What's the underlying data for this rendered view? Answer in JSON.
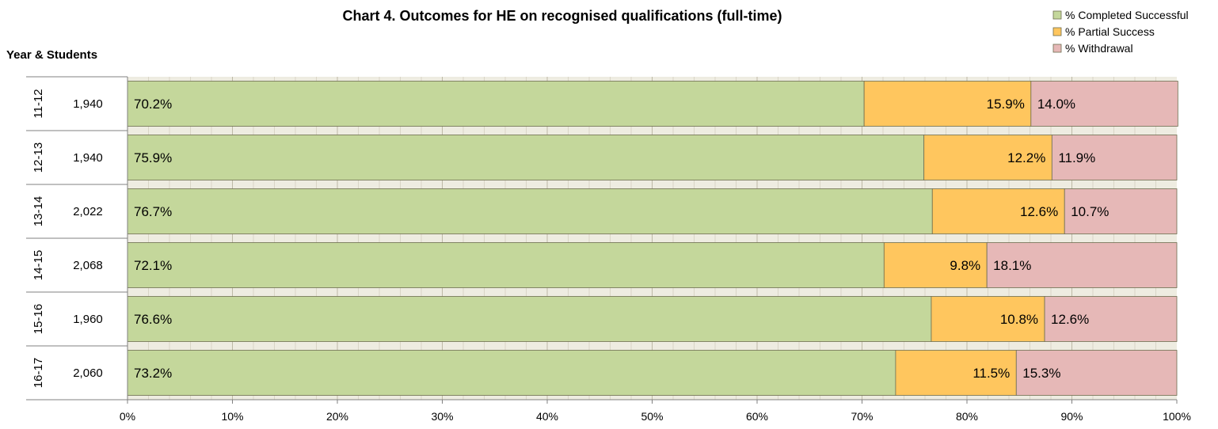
{
  "chart_data": {
    "type": "bar",
    "orientation": "horizontal",
    "stacked": true,
    "title": "Chart 4. Outcomes for HE on recognised qualifications (full-time)",
    "ylabel": "Year & Students",
    "categories": [
      "11-12",
      "12-13",
      "13-14",
      "14-15",
      "15-16",
      "16-17"
    ],
    "students": [
      "1,940",
      "1,940",
      "2,022",
      "2,068",
      "1,960",
      "2,060"
    ],
    "series": [
      {
        "name": "% Completed Successful",
        "color": "#c4d79b",
        "values": [
          70.2,
          75.9,
          76.7,
          72.1,
          76.6,
          73.2
        ]
      },
      {
        "name": "% Partial Success",
        "color": "#ffc65e",
        "values": [
          15.9,
          12.2,
          12.6,
          9.8,
          10.8,
          11.5
        ]
      },
      {
        "name": "% Withdrawal",
        "color": "#e6b8b7",
        "values": [
          14.0,
          11.9,
          10.7,
          18.1,
          12.6,
          15.3
        ]
      }
    ],
    "xlim": [
      0,
      100
    ],
    "xticks": [
      "0%",
      "10%",
      "20%",
      "30%",
      "40%",
      "50%",
      "60%",
      "70%",
      "80%",
      "90%",
      "100%"
    ],
    "legend_position": "top-right",
    "grid": true
  }
}
